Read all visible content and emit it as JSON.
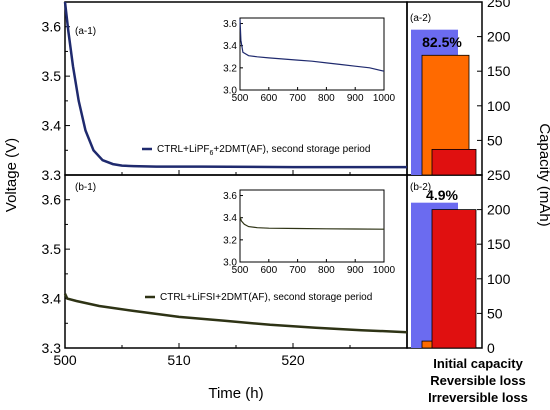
{
  "colors": {
    "line_top": "#1f2a6e",
    "line_bottom": "#2e3315",
    "initial": "#6b6bf0",
    "reversible": "#ff6a00",
    "irreversible": "#e01010",
    "pct_text": "#ff6a00",
    "cat_initial": "#6b6bf0",
    "cat_reversible": "#ff6a00",
    "cat_irreversible": "#e01010"
  },
  "chart_data": [
    {
      "id": "a-1",
      "type": "line",
      "panel_label": "(a-1)",
      "ylabel": "Voltage (V)",
      "xlim": [
        500,
        530
      ],
      "ylim": [
        3.3,
        3.65
      ],
      "yticks": [
        "3.3",
        "3.4",
        "3.5",
        "3.6"
      ],
      "legend": "CTRL+LiPF6+2DMT(AF), second storage period",
      "legend_main": "CTRL+LiPF",
      "legend_sub": "6",
      "legend_rest": "+2DMT(AF), second storage period",
      "x": [
        500,
        500.3,
        500.7,
        501.2,
        501.8,
        502.5,
        503.3,
        504.2,
        505,
        506,
        508,
        512,
        520,
        530
      ],
      "y": [
        3.65,
        3.59,
        3.52,
        3.45,
        3.39,
        3.35,
        3.33,
        3.322,
        3.319,
        3.318,
        3.317,
        3.317,
        3.316,
        3.316
      ],
      "inset": {
        "xlim": [
          500,
          1000
        ],
        "ylim": [
          3.0,
          3.65
        ],
        "xticks": [
          "500",
          "600",
          "700",
          "800",
          "900",
          "1000"
        ],
        "yticks": [
          "3.0",
          "3.2",
          "3.4",
          "3.6"
        ],
        "x": [
          500,
          503,
          510,
          530,
          560,
          600,
          650,
          700,
          750,
          800,
          850,
          900,
          950,
          1000
        ],
        "y": [
          3.64,
          3.45,
          3.34,
          3.31,
          3.3,
          3.29,
          3.28,
          3.27,
          3.26,
          3.245,
          3.23,
          3.215,
          3.2,
          3.17
        ]
      }
    },
    {
      "id": "b-1",
      "type": "line",
      "panel_label": "(b-1)",
      "xlabel": "Time (h)",
      "xlim": [
        500,
        530
      ],
      "xticks": [
        "500",
        "510",
        "520"
      ],
      "ylim": [
        3.3,
        3.65
      ],
      "yticks": [
        "3.3",
        "3.4",
        "3.5",
        "3.6"
      ],
      "legend": "CTRL+LiFSI+2DMT(AF), second storage period",
      "x": [
        500,
        500.2,
        501,
        503,
        506,
        510,
        514,
        518,
        522,
        526,
        530
      ],
      "y": [
        3.41,
        3.4,
        3.395,
        3.385,
        3.375,
        3.363,
        3.355,
        3.347,
        3.341,
        3.336,
        3.332
      ],
      "inset": {
        "xlim": [
          500,
          1000
        ],
        "ylim": [
          3.0,
          3.65
        ],
        "xticks": [
          "500",
          "600",
          "700",
          "800",
          "900",
          "1000"
        ],
        "yticks": [
          "3.0",
          "3.2",
          "3.4",
          "3.6"
        ],
        "x": [
          500,
          505,
          515,
          530,
          560,
          600,
          700,
          800,
          900,
          1000
        ],
        "y": [
          3.41,
          3.37,
          3.34,
          3.32,
          3.31,
          3.305,
          3.302,
          3.3,
          3.298,
          3.296
        ]
      }
    },
    {
      "id": "a-2",
      "type": "bar",
      "panel_label": "(a-2)",
      "ylabel": "Capacity (mAh)",
      "ylim": [
        0,
        250
      ],
      "yticks": [
        "0",
        "50",
        "100",
        "150",
        "200",
        "250"
      ],
      "percent": "82.5%",
      "series": [
        {
          "name": "Initial capacity",
          "value": 210
        },
        {
          "name": "Reversible loss",
          "value": 173
        },
        {
          "name": "Irreversible loss",
          "value": 37
        }
      ]
    },
    {
      "id": "b-2",
      "type": "bar",
      "panel_label": "(b-2)",
      "ylim": [
        0,
        250
      ],
      "yticks": [
        "0",
        "50",
        "100",
        "150",
        "200",
        "250"
      ],
      "percent": "4.9%",
      "series": [
        {
          "name": "Initial capacity",
          "value": 210
        },
        {
          "name": "Reversible loss",
          "value": 10
        },
        {
          "name": "Irreversible loss",
          "value": 200
        }
      ]
    }
  ],
  "categories": [
    "Initial capacity",
    "Reversible loss",
    "Irreversible loss"
  ]
}
